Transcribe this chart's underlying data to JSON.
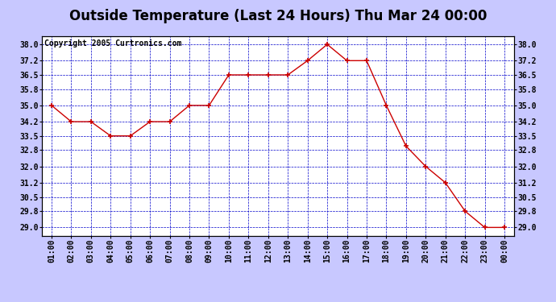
{
  "title": "Outside Temperature (Last 24 Hours) Thu Mar 24 00:00",
  "copyright": "Copyright 2005 Curtronics.com",
  "x_labels": [
    "01:00",
    "02:00",
    "03:00",
    "04:00",
    "05:00",
    "06:00",
    "07:00",
    "08:00",
    "09:00",
    "10:00",
    "11:00",
    "12:00",
    "13:00",
    "14:00",
    "15:00",
    "16:00",
    "17:00",
    "18:00",
    "19:00",
    "20:00",
    "21:00",
    "22:00",
    "23:00",
    "00:00"
  ],
  "y_values": [
    35.0,
    34.2,
    34.2,
    33.5,
    33.5,
    34.2,
    34.2,
    35.0,
    35.0,
    36.5,
    36.5,
    36.5,
    36.5,
    37.2,
    38.0,
    37.2,
    37.2,
    35.0,
    33.0,
    32.0,
    31.2,
    29.8,
    29.0,
    29.0
  ],
  "line_color": "#cc0000",
  "marker_color": "#cc0000",
  "plot_bg_color": "#ffffff",
  "outer_bg_color": "#c8c8ff",
  "title_bg_color": "#c8c8ff",
  "grid_color": "#0000cc",
  "border_color": "#000000",
  "title_color": "#000000",
  "ylim": [
    28.6,
    38.4
  ],
  "yticks": [
    29.0,
    29.8,
    30.5,
    31.2,
    32.0,
    32.8,
    33.5,
    34.2,
    35.0,
    35.8,
    36.5,
    37.2,
    38.0
  ],
  "title_fontsize": 12,
  "copyright_fontsize": 7,
  "tick_fontsize": 7,
  "fig_width": 6.9,
  "fig_height": 3.75
}
